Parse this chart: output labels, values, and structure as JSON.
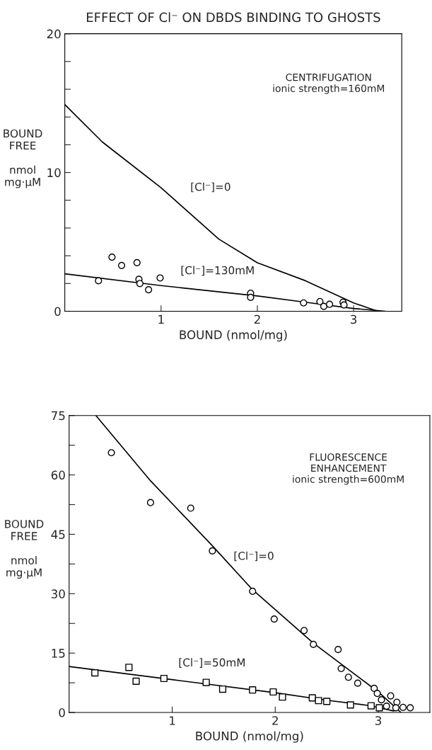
{
  "chart_data": [
    {
      "type": "scatter",
      "title": "EFFECT OF Cl⁻ ON DBDS BINDING TO GHOSTS",
      "xlabel": "BOUND (nmol/mg)",
      "ylabel": "BOUND\nFREE\n\nnmol\nmg·μM",
      "xlim": [
        0,
        3.5
      ],
      "xticks": [
        1,
        2,
        3
      ],
      "ylim": [
        0,
        20
      ],
      "yticks": [
        0,
        {
          "value": 2,
          "label": null
        },
        {
          "value": 4,
          "label": null
        },
        {
          "value": 6,
          "label": null
        },
        {
          "value": 8,
          "label": null
        },
        10,
        {
          "value": 12,
          "label": null
        },
        {
          "value": 14,
          "label": null
        },
        {
          "value": 16,
          "label": null
        },
        {
          "value": 18,
          "label": null
        },
        20
      ],
      "grid": false,
      "legend": false,
      "series": [
        {
          "type": "line",
          "color": "#000000",
          "x": [
            0,
            0.39,
            1,
            1.6,
            2,
            2.5,
            3,
            3.25
          ],
          "values": [
            14.9,
            12.2,
            8.9,
            5.2,
            3.5,
            2.2,
            0.6,
            0
          ]
        },
        {
          "type": "line",
          "color": "#000000",
          "x": [
            0,
            1,
            2,
            2.5,
            3,
            3.33
          ],
          "values": [
            2.7,
            1.85,
            1.1,
            0.65,
            0.2,
            0
          ]
        },
        {
          "marker": "circle",
          "color": "#000000",
          "x": [
            0.35,
            0.49,
            0.59,
            0.75,
            0.77,
            0.78,
            0.87,
            0.99,
            1.93,
            1.93,
            2.48,
            2.65,
            2.69,
            2.75,
            2.89,
            2.9
          ],
          "values": [
            2.2,
            3.9,
            3.3,
            3.5,
            2.3,
            2.0,
            1.55,
            2.4,
            1.3,
            1.0,
            0.6,
            0.7,
            0.35,
            0.5,
            0.65,
            0.45
          ]
        }
      ],
      "annotations": [
        {
          "text": "[Cl⁻]=0",
          "x": 1.12,
          "y": 8.1
        },
        {
          "text": "[Cl⁻]=130mM",
          "x": 1.1,
          "y": 1.8
        },
        "CENTRIFUGATION\nionic strength=160mM"
      ]
    },
    {
      "type": "scatter",
      "xlabel": "BOUND (nmol/mg)",
      "ylabel": "BOUND\nFREE\n\nnmol\nmg·μM",
      "xlim": [
        0,
        3.5
      ],
      "xticks": [
        1,
        2,
        3
      ],
      "ylim": [
        0,
        75
      ],
      "yticks": [
        0,
        {
          "value": 7.5,
          "label": null
        },
        15,
        {
          "value": 22.5,
          "label": null
        },
        30,
        {
          "value": 37.5,
          "label": null
        },
        45,
        {
          "value": 52.5,
          "label": null
        },
        60,
        {
          "value": 67.5,
          "label": null
        },
        75
      ],
      "grid": false,
      "legend": false,
      "series": [
        {
          "type": "line",
          "color": "#000000",
          "x": [
            0.26,
            0.79,
            1.39,
            1.78,
            2.37,
            3.0,
            3.22
          ],
          "values": [
            75,
            58.5,
            42.1,
            31,
            17.5,
            5.2,
            0
          ]
        },
        {
          "type": "line",
          "color": "#000000",
          "x": [
            0,
            1,
            2,
            2.5,
            2.9,
            3.15
          ],
          "values": [
            11.6,
            8.3,
            5.0,
            3.1,
            1.8,
            0.4
          ]
        },
        {
          "marker": "circle",
          "color": "#000000",
          "x": [
            0.41,
            0.79,
            1.18,
            1.39,
            1.78,
            1.99,
            2.28,
            2.37,
            2.61,
            2.64,
            2.71,
            2.8,
            2.96,
            2.99,
            3.03,
            3.12,
            3.08,
            3.18,
            3.17,
            3.24,
            3.31
          ],
          "values": [
            65.6,
            53.0,
            51.6,
            40.8,
            30.6,
            23.6,
            20.7,
            17.2,
            15.9,
            11.1,
            8.9,
            7.4,
            6.1,
            4.8,
            3.2,
            4.2,
            1.6,
            2.6,
            1.2,
            1.3,
            1.2
          ]
        },
        {
          "marker": "square",
          "color": "#000000",
          "x": [
            0.25,
            0.58,
            0.65,
            0.92,
            1.33,
            1.49,
            1.78,
            1.98,
            2.07,
            2.36,
            2.42,
            2.5,
            2.73,
            2.93,
            3.01
          ],
          "values": [
            10.0,
            11.4,
            7.9,
            8.6,
            7.6,
            5.9,
            5.7,
            5.2,
            3.9,
            3.7,
            3.0,
            2.8,
            1.9,
            1.7,
            1.2
          ]
        }
      ],
      "annotations": [
        {
          "text": "[Cl⁻]=0",
          "x": 1.5,
          "y": 39.0
        },
        {
          "text": "[Cl⁻]=50mM",
          "x": 1.06,
          "y": 8.1
        },
        "FLUORESCENCE\nENHANCEMENT\nionic strength=600mM"
      ]
    }
  ]
}
